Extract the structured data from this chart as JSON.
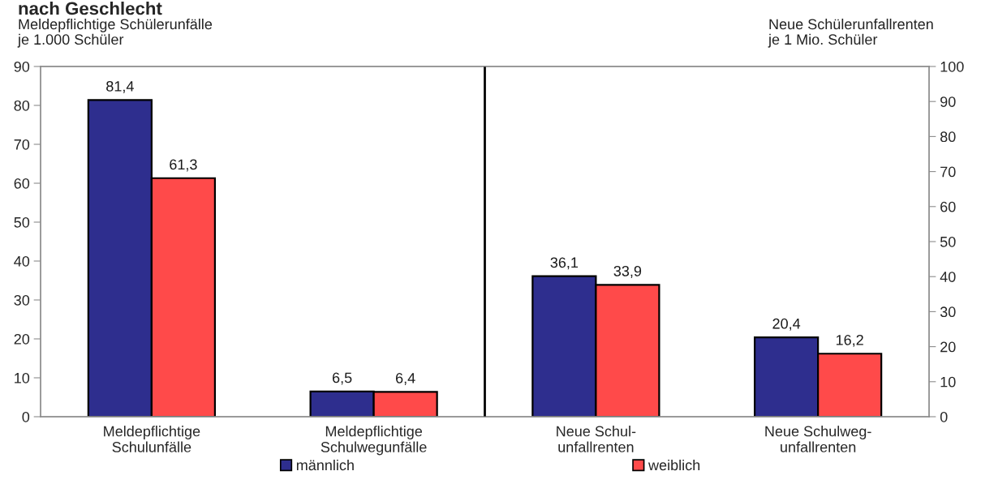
{
  "chart_data": {
    "type": "bar",
    "title": "nach Geschlecht",
    "ylabel": "Meldepflichtige Schülerunfälle\nje 1.000 Schüler",
    "y2label": "Neue Schülerunfallrenten\nje 1 Mio. Schüler",
    "categories": [
      "Meldepflichtige\nSchulunfälle",
      "Meldepflichtige\nSchulwegunfälle",
      "Neue Schul-\nunfallrenten",
      "Neue Schulweg-\nunfallrenten"
    ],
    "series": [
      {
        "name": "männlich",
        "color": "#2e2e8e",
        "values": [
          81.4,
          6.5,
          36.1,
          20.4
        ],
        "value_labels": [
          "81,4",
          "6,5",
          "36,1",
          "20,4"
        ]
      },
      {
        "name": "weiblich",
        "color": "#ff4a4a",
        "values": [
          61.3,
          6.4,
          33.9,
          16.2
        ],
        "value_labels": [
          "61,3",
          "6,4",
          "33,9",
          "16,2"
        ]
      }
    ],
    "ylim": [
      0,
      90
    ],
    "yticks": [
      0,
      10,
      20,
      30,
      40,
      50,
      60,
      70,
      80,
      90
    ],
    "y2lim": [
      0,
      100
    ],
    "y2ticks": [
      0,
      10,
      20,
      30,
      40,
      50,
      60,
      70,
      80,
      90,
      100
    ],
    "legend": "bottom",
    "grid": false
  }
}
